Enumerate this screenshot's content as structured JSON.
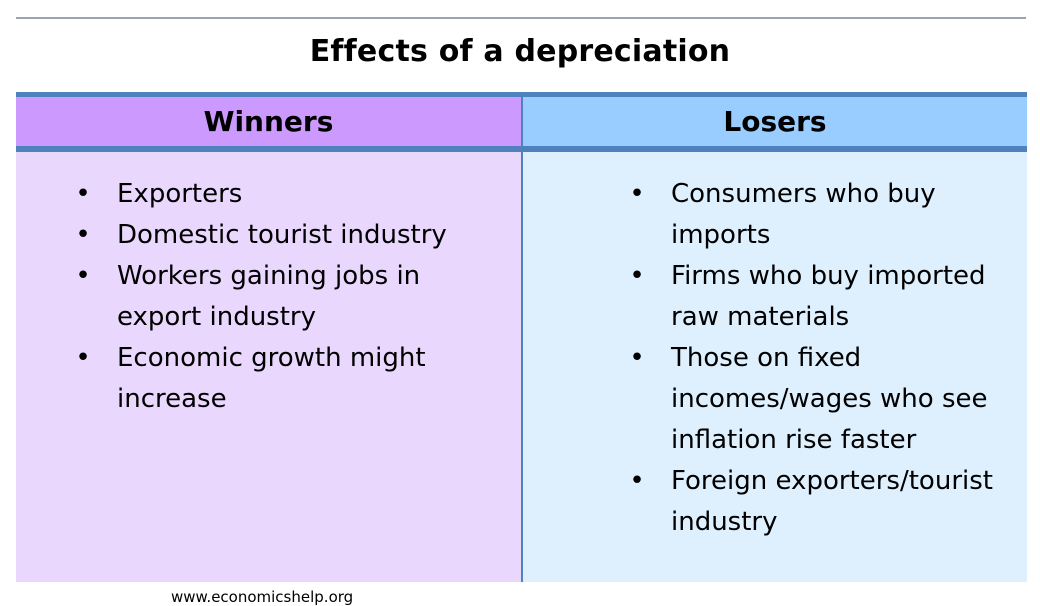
{
  "title": "Effects of a depreciation",
  "columns": {
    "winners": {
      "header": "Winners",
      "items": [
        "Exporters",
        "Domestic tourist industry",
        "Workers gaining jobs in export industry",
        "Economic growth might increase"
      ]
    },
    "losers": {
      "header": "Losers",
      "items": [
        "Consumers who buy imports",
        "Firms who buy imported raw materials",
        "Those on fixed incomes/wages who see inflation rise faster",
        "Foreign exporters/tourist industry"
      ]
    }
  },
  "watermark": "www.economicshelp.org",
  "bullet_glyph": "•",
  "colors": {
    "winners_header": "#cc99ff",
    "winners_body": "#ead7fd",
    "losers_header": "#99ccff",
    "losers_body": "#deeffd",
    "border": "#4f81bd"
  }
}
